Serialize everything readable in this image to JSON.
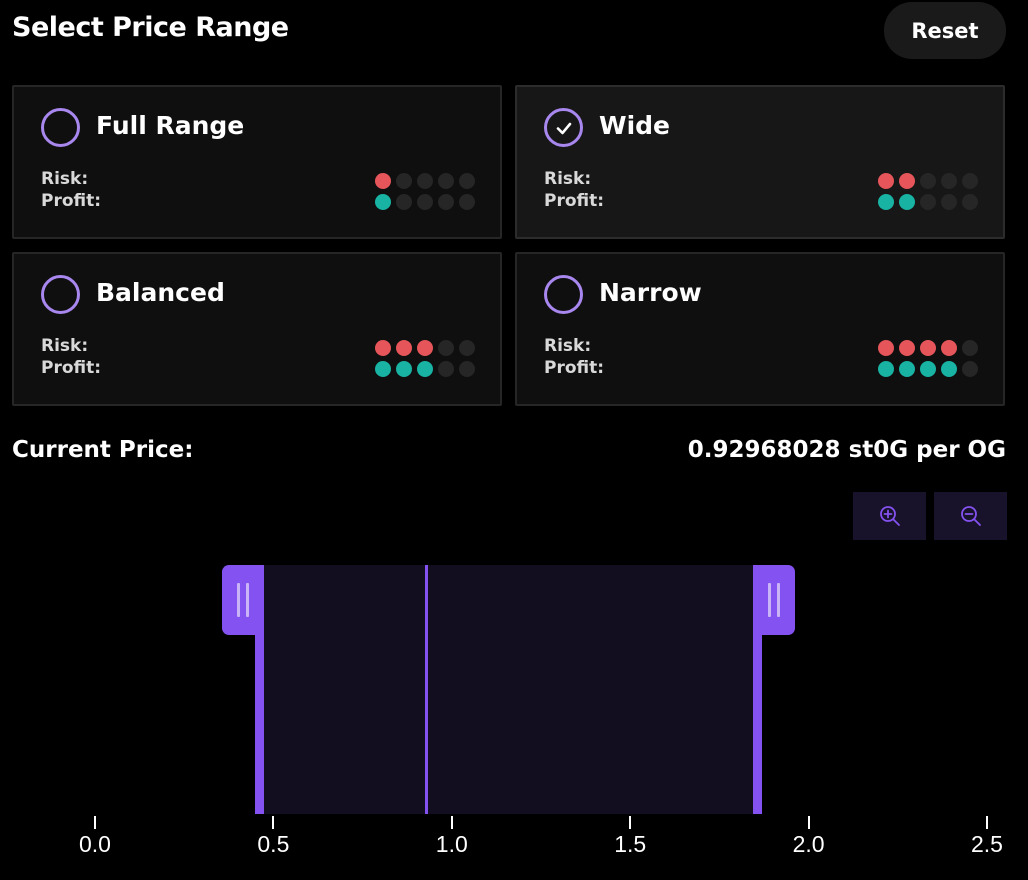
{
  "header": {
    "title": "Select Price Range",
    "reset_label": "Reset"
  },
  "options": [
    {
      "label": "Full Range",
      "selected": false,
      "risk": 1,
      "profit": 1
    },
    {
      "label": "Wide",
      "selected": true,
      "risk": 2,
      "profit": 2
    },
    {
      "label": "Balanced",
      "selected": false,
      "risk": 3,
      "profit": 3
    },
    {
      "label": "Narrow",
      "selected": false,
      "risk": 4,
      "profit": 4
    }
  ],
  "labels": {
    "risk": "Risk:",
    "profit": "Profit:"
  },
  "max_dots": 5,
  "current_price": {
    "label": "Current Price:",
    "value": "0.92968028 st0G per OG"
  },
  "zoom": {
    "zoom_in_icon": "zoom-in-icon",
    "zoom_out_icon": "zoom-out-icon"
  },
  "range_chart": {
    "axis_ticks": [
      "0.0",
      "0.5",
      "1.0",
      "1.5",
      "2.0",
      "2.5"
    ],
    "axis_min": 0.0,
    "axis_max": 2.5,
    "range_min": 0.46,
    "range_max": 1.87,
    "current_price": 0.93
  },
  "colors": {
    "accent": "#8452f0",
    "radio": "#a887ee",
    "risk_dot": "#e5555a",
    "profit_dot": "#18b3a3",
    "empty_dot": "#262626"
  }
}
